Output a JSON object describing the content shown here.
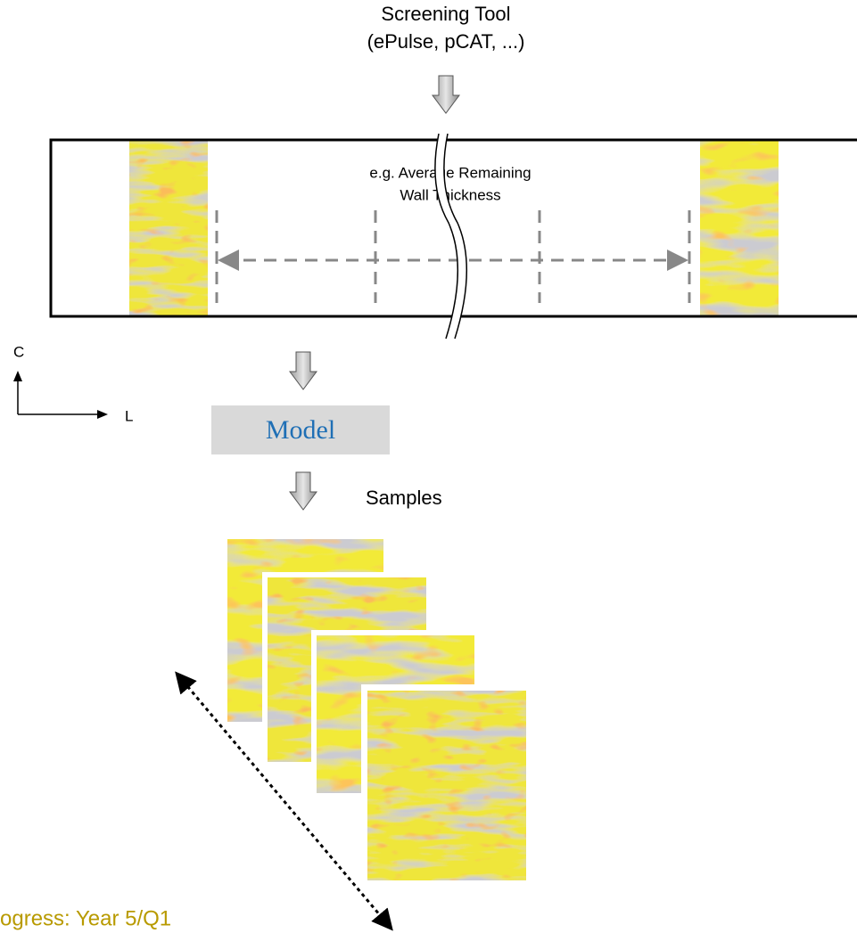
{
  "header": {
    "line1": "Screening Tool",
    "line2": "(ePulse, pCAT, ...)"
  },
  "pipe_label": {
    "line1": "e.g. Average Remaining",
    "line2": "Wall Thickness"
  },
  "axes": {
    "c": "C",
    "l": "L"
  },
  "model": "Model",
  "samples": "Samples",
  "footer": "ogress: Year 5/Q1"
}
